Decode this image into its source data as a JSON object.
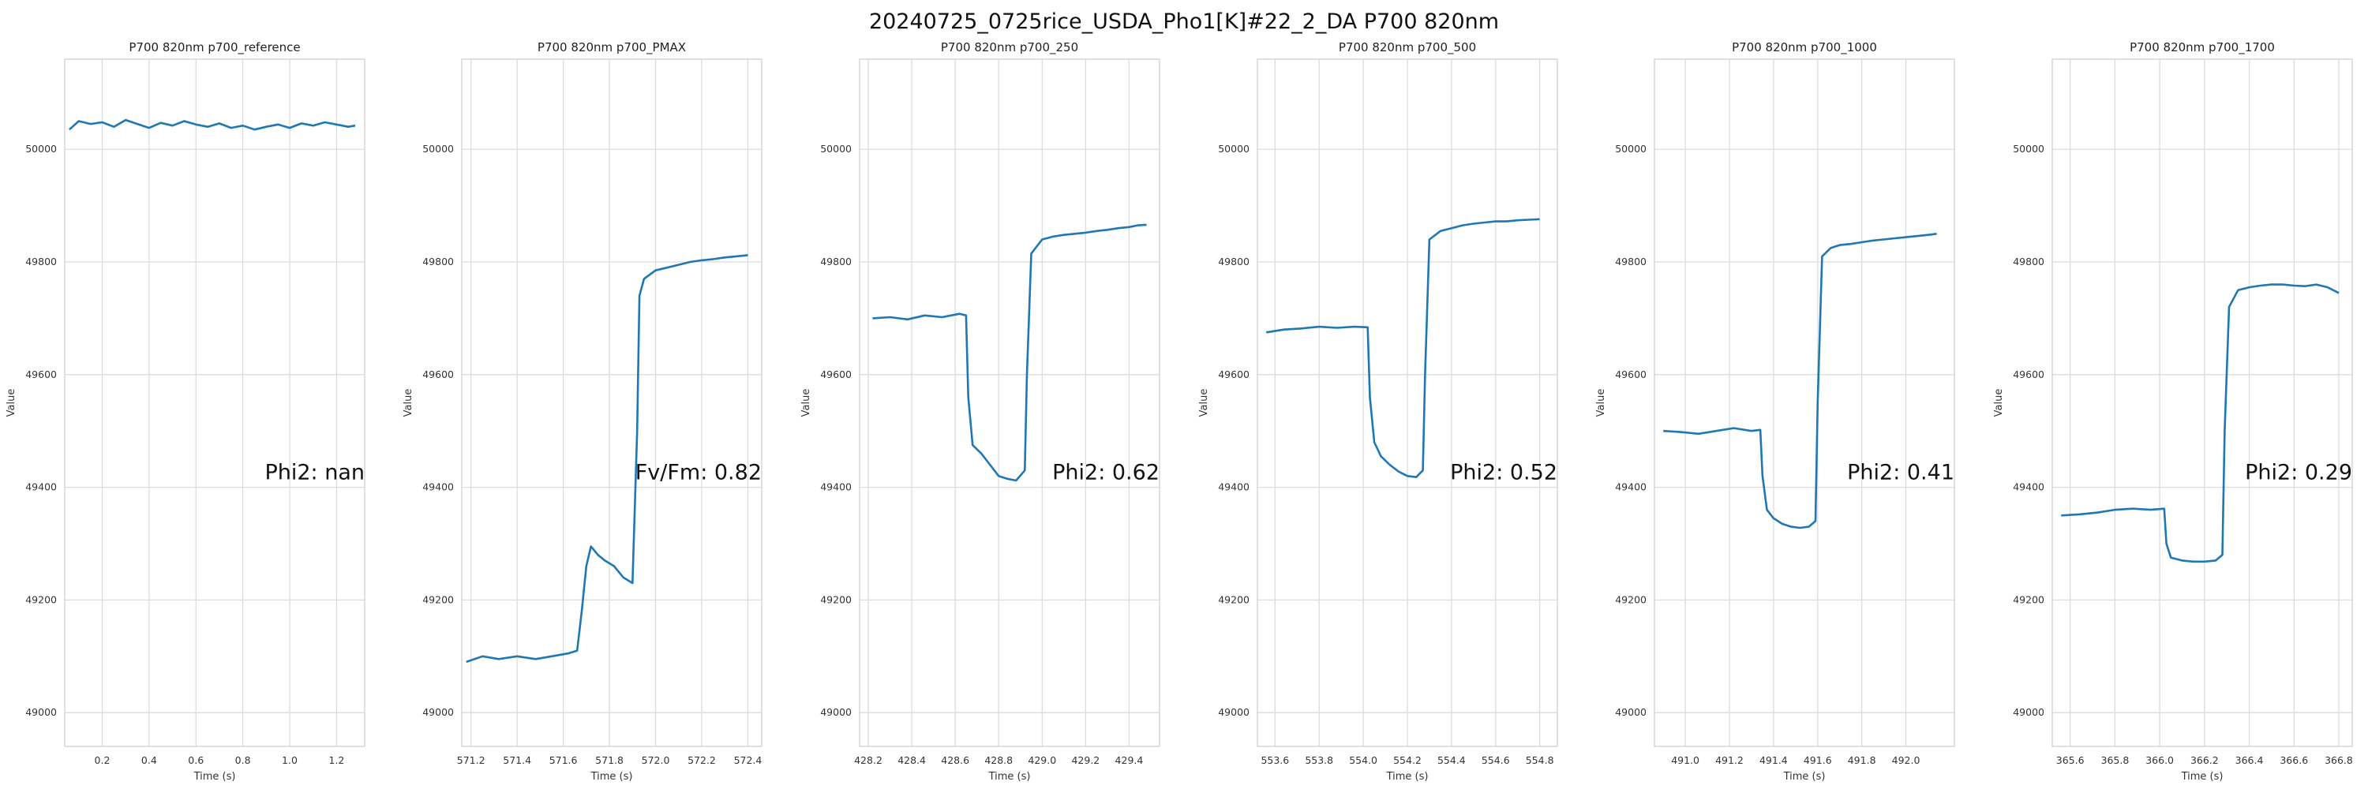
{
  "figure": {
    "title": "20240725_0725rice_USDA_Pho1[K]#22_2_DA P700 820nm"
  },
  "chart_data": [
    {
      "type": "line",
      "title": "P700 820nm p700_reference",
      "xlabel": "Time (s)",
      "ylabel": "Value",
      "xlim": [
        0.04,
        1.32
      ],
      "ylim": [
        48940,
        50160
      ],
      "xticks": [
        0.2,
        0.4,
        0.6,
        0.8,
        1.0,
        1.2
      ],
      "yticks": [
        49000,
        49200,
        49400,
        49600,
        49800,
        50000
      ],
      "grid": true,
      "annotation": "Phi2: nan",
      "x": [
        0.06,
        0.1,
        0.15,
        0.2,
        0.25,
        0.3,
        0.35,
        0.4,
        0.45,
        0.5,
        0.55,
        0.6,
        0.65,
        0.7,
        0.75,
        0.8,
        0.85,
        0.9,
        0.95,
        1.0,
        1.05,
        1.1,
        1.15,
        1.2,
        1.25,
        1.28
      ],
      "y": [
        50035,
        50050,
        50045,
        50048,
        50040,
        50052,
        50045,
        50038,
        50047,
        50042,
        50050,
        50044,
        50040,
        50046,
        50038,
        50042,
        50035,
        50040,
        50044,
        50038,
        50046,
        50042,
        50048,
        50044,
        50040,
        50042
      ]
    },
    {
      "type": "line",
      "title": "P700 820nm p700_PMAX",
      "xlabel": "Time (s)",
      "ylabel": "Value",
      "xlim": [
        571.16,
        572.46
      ],
      "ylim": [
        48940,
        50160
      ],
      "xticks": [
        571.2,
        571.4,
        571.6,
        571.8,
        572.0,
        572.2,
        572.4
      ],
      "yticks": [
        49000,
        49200,
        49400,
        49600,
        49800,
        50000
      ],
      "grid": true,
      "annotation": "Fv/Fm: 0.82",
      "x": [
        571.18,
        571.25,
        571.32,
        571.4,
        571.48,
        571.55,
        571.62,
        571.66,
        571.68,
        571.7,
        571.72,
        571.75,
        571.78,
        571.82,
        571.86,
        571.9,
        571.92,
        571.93,
        571.95,
        572.0,
        572.05,
        572.1,
        572.15,
        572.2,
        572.25,
        572.3,
        572.35,
        572.4
      ],
      "y": [
        49090,
        49100,
        49095,
        49100,
        49095,
        49100,
        49105,
        49110,
        49180,
        49260,
        49295,
        49280,
        49270,
        49260,
        49240,
        49230,
        49500,
        49740,
        49770,
        49785,
        49790,
        49795,
        49800,
        49803,
        49805,
        49808,
        49810,
        49812
      ]
    },
    {
      "type": "line",
      "title": "P700 820nm p700_250",
      "xlabel": "Time (s)",
      "ylabel": "Value",
      "xlim": [
        428.16,
        429.54
      ],
      "ylim": [
        48940,
        50160
      ],
      "xticks": [
        428.2,
        428.4,
        428.6,
        428.8,
        429.0,
        429.2,
        429.4
      ],
      "yticks": [
        49000,
        49200,
        49400,
        49600,
        49800,
        50000
      ],
      "grid": true,
      "annotation": "Phi2: 0.62",
      "x": [
        428.22,
        428.3,
        428.38,
        428.46,
        428.54,
        428.62,
        428.65,
        428.66,
        428.68,
        428.72,
        428.76,
        428.8,
        428.84,
        428.88,
        428.92,
        428.93,
        428.95,
        429.0,
        429.05,
        429.1,
        429.15,
        429.2,
        429.25,
        429.3,
        429.35,
        429.4,
        429.44,
        429.48
      ],
      "y": [
        49700,
        49702,
        49698,
        49705,
        49702,
        49708,
        49705,
        49560,
        49475,
        49460,
        49440,
        49420,
        49415,
        49412,
        49430,
        49600,
        49815,
        49840,
        49845,
        49848,
        49850,
        49852,
        49855,
        49857,
        49860,
        49862,
        49865,
        49866
      ]
    },
    {
      "type": "line",
      "title": "P700 820nm p700_500",
      "xlabel": "Time (s)",
      "ylabel": "Value",
      "xlim": [
        553.52,
        554.88
      ],
      "ylim": [
        48940,
        50160
      ],
      "xticks": [
        553.6,
        553.8,
        554.0,
        554.2,
        554.4,
        554.6,
        554.8
      ],
      "yticks": [
        49000,
        49200,
        49400,
        49600,
        49800,
        50000
      ],
      "grid": true,
      "annotation": "Phi2: 0.52",
      "x": [
        553.56,
        553.64,
        553.72,
        553.8,
        553.88,
        553.96,
        554.02,
        554.03,
        554.05,
        554.08,
        554.12,
        554.16,
        554.2,
        554.24,
        554.27,
        554.28,
        554.3,
        554.35,
        554.4,
        554.45,
        554.5,
        554.55,
        554.6,
        554.65,
        554.7,
        554.75,
        554.8
      ],
      "y": [
        49675,
        49680,
        49682,
        49685,
        49683,
        49685,
        49684,
        49560,
        49480,
        49455,
        49440,
        49428,
        49420,
        49418,
        49430,
        49600,
        49840,
        49855,
        49860,
        49865,
        49868,
        49870,
        49872,
        49872,
        49874,
        49875,
        49876
      ]
    },
    {
      "type": "line",
      "title": "P700 820nm p700_1000",
      "xlabel": "Time (s)",
      "ylabel": "Value",
      "xlim": [
        490.86,
        492.22
      ],
      "ylim": [
        48940,
        50160
      ],
      "xticks": [
        491.0,
        491.2,
        491.4,
        491.6,
        491.8,
        492.0
      ],
      "yticks": [
        49000,
        49200,
        49400,
        49600,
        49800,
        50000
      ],
      "grid": true,
      "annotation": "Phi2: 0.41",
      "x": [
        490.9,
        490.98,
        491.06,
        491.14,
        491.22,
        491.3,
        491.34,
        491.35,
        491.37,
        491.4,
        491.44,
        491.48,
        491.52,
        491.56,
        491.59,
        491.6,
        491.62,
        491.66,
        491.7,
        491.75,
        491.8,
        491.85,
        491.9,
        491.95,
        492.0,
        492.05,
        492.1,
        492.14
      ],
      "y": [
        49500,
        49498,
        49495,
        49500,
        49505,
        49500,
        49502,
        49420,
        49360,
        49345,
        49335,
        49330,
        49328,
        49330,
        49340,
        49550,
        49810,
        49825,
        49830,
        49832,
        49835,
        49838,
        49840,
        49842,
        49844,
        49846,
        49848,
        49850
      ]
    },
    {
      "type": "line",
      "title": "P700 820nm p700_1700",
      "xlabel": "Time (s)",
      "ylabel": "Value",
      "xlim": [
        365.52,
        366.86
      ],
      "ylim": [
        48940,
        50160
      ],
      "xticks": [
        365.6,
        365.8,
        366.0,
        366.2,
        366.4,
        366.6,
        366.8
      ],
      "yticks": [
        49000,
        49200,
        49400,
        49600,
        49800,
        50000
      ],
      "grid": true,
      "annotation": "Phi2: 0.29",
      "x": [
        365.56,
        365.64,
        365.72,
        365.8,
        365.88,
        365.96,
        366.02,
        366.03,
        366.05,
        366.1,
        366.15,
        366.2,
        366.25,
        366.28,
        366.29,
        366.31,
        366.35,
        366.4,
        366.45,
        366.5,
        366.55,
        366.6,
        366.65,
        366.7,
        366.75,
        366.8
      ],
      "y": [
        49350,
        49352,
        49355,
        49360,
        49362,
        49360,
        49362,
        49300,
        49275,
        49270,
        49268,
        49268,
        49270,
        49280,
        49500,
        49720,
        49750,
        49755,
        49758,
        49760,
        49760,
        49758,
        49757,
        49760,
        49755,
        49745
      ]
    }
  ]
}
